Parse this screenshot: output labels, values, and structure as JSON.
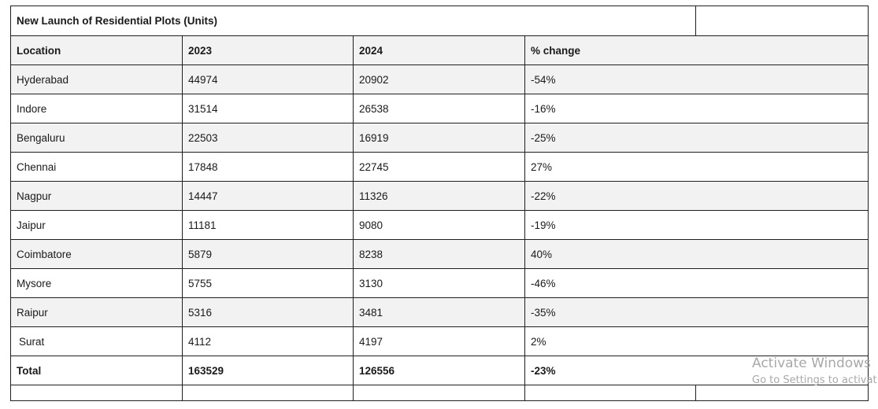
{
  "table": {
    "title": "New Launch of Residential Plots (Units)",
    "headers": [
      "Location",
      "2023",
      "2024",
      "% change"
    ],
    "rows": [
      {
        "location": "Hyderabad",
        "y2023": "44974",
        "y2024": "20902",
        "change": "-54%"
      },
      {
        "location": "Indore",
        "y2023": "31514",
        "y2024": "26538",
        "change": "-16%"
      },
      {
        "location": "Bengaluru",
        "y2023": "22503",
        "y2024": "16919",
        "change": "-25%"
      },
      {
        "location": "Chennai",
        "y2023": "17848",
        "y2024": "22745",
        "change": "27%"
      },
      {
        "location": "Nagpur",
        "y2023": "14447",
        "y2024": "11326",
        "change": "-22%"
      },
      {
        "location": "Jaipur",
        "y2023": "11181",
        "y2024": "9080",
        "change": "-19%"
      },
      {
        "location": "Coimbatore",
        "y2023": "5879",
        "y2024": "8238",
        "change": "40%"
      },
      {
        "location": "Mysore",
        "y2023": "5755",
        "y2024": "3130",
        "change": "-46%"
      },
      {
        "location": "Raipur",
        "y2023": "5316",
        "y2024": "3481",
        "change": "-35%"
      },
      {
        "location": "Surat",
        "y2023": "4112",
        "y2024": "4197",
        "change": "2%"
      }
    ],
    "total": {
      "location": "Total",
      "y2023": "163529",
      "y2024": "126556",
      "change": "-23%"
    }
  },
  "watermark": {
    "title": "Activate Windows",
    "subtitle": "Go to Settings to activat"
  }
}
